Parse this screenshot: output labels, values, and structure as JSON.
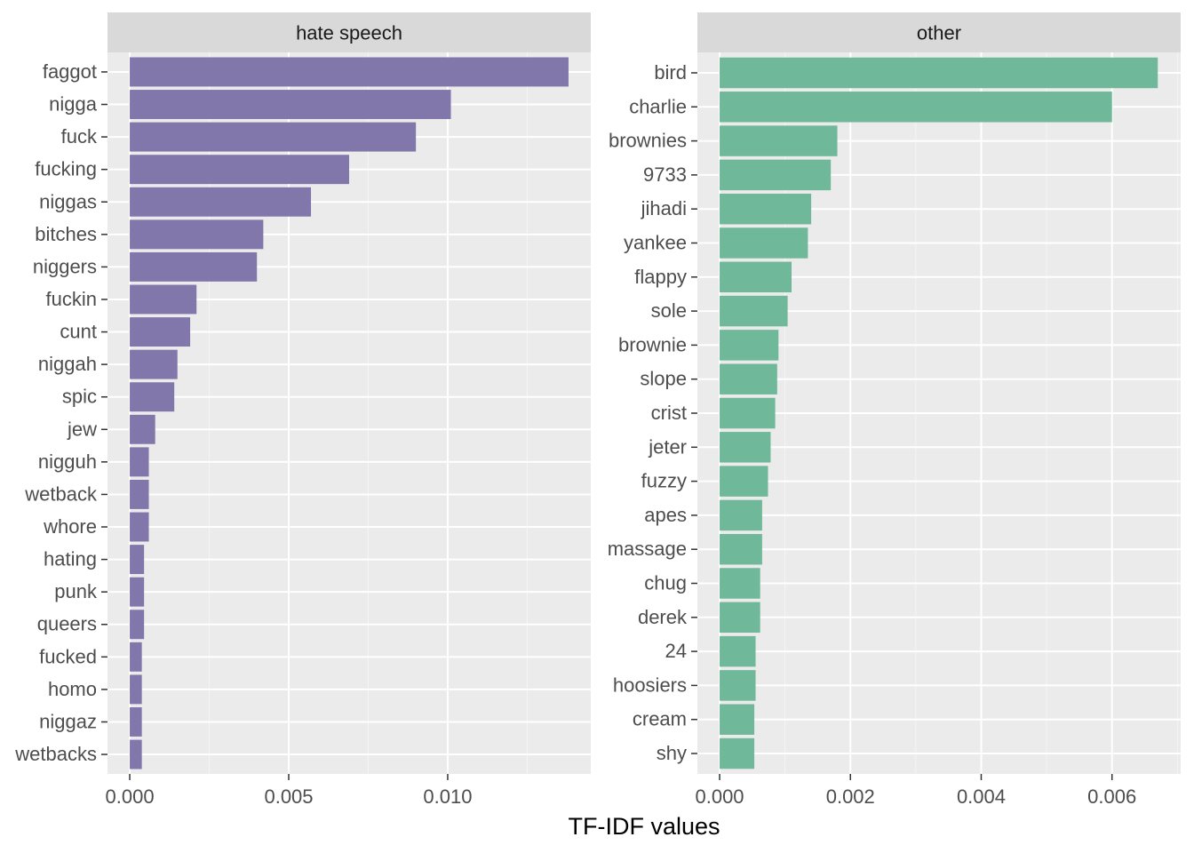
{
  "chart_data": {
    "type": "bar",
    "orientation": "horizontal",
    "xlabel": "TF-IDF values",
    "ylabel": "",
    "grid": true,
    "legend": "none",
    "panels": [
      {
        "title": "hate speech",
        "color": "#8177AB",
        "xlim": [
          -0.0007,
          0.0145
        ],
        "xticks": [
          0.0,
          0.005,
          0.01
        ],
        "xtick_labels": [
          "0.000",
          "0.005",
          "0.010"
        ],
        "categories": [
          "faggot",
          "nigga",
          "fuck",
          "fucking",
          "niggas",
          "bitches",
          "niggers",
          "fuckin",
          "cunt",
          "niggah",
          "spic",
          "jew",
          "nigguh",
          "wetback",
          "whore",
          "hating",
          "punk",
          "queers",
          "fucked",
          "homo",
          "niggaz",
          "wetbacks"
        ],
        "values": [
          0.0138,
          0.0101,
          0.009,
          0.0069,
          0.0057,
          0.0042,
          0.004,
          0.0021,
          0.0019,
          0.0015,
          0.0014,
          0.0008,
          0.0006,
          0.0006,
          0.0006,
          0.00045,
          0.00045,
          0.00045,
          0.00038,
          0.00038,
          0.00038,
          0.00038
        ]
      },
      {
        "title": "other",
        "color": "#6FB899",
        "xlim": [
          -0.00034,
          0.00705
        ],
        "xticks": [
          0.0,
          0.002,
          0.004,
          0.006
        ],
        "xtick_labels": [
          "0.000",
          "0.002",
          "0.004",
          "0.006"
        ],
        "categories": [
          "bird",
          "charlie",
          "brownies",
          "9733",
          "jihadi",
          "yankee",
          "flappy",
          "sole",
          "brownie",
          "slope",
          "crist",
          "jeter",
          "fuzzy",
          "apes",
          "massage",
          "chug",
          "derek",
          "24",
          "hoosiers",
          "cream",
          "shy"
        ],
        "values": [
          0.0067,
          0.006,
          0.0018,
          0.0017,
          0.0014,
          0.00135,
          0.0011,
          0.00104,
          0.0009,
          0.00088,
          0.00085,
          0.00078,
          0.00074,
          0.00065,
          0.00065,
          0.00062,
          0.00062,
          0.00055,
          0.00055,
          0.00053,
          0.00053
        ]
      }
    ]
  }
}
